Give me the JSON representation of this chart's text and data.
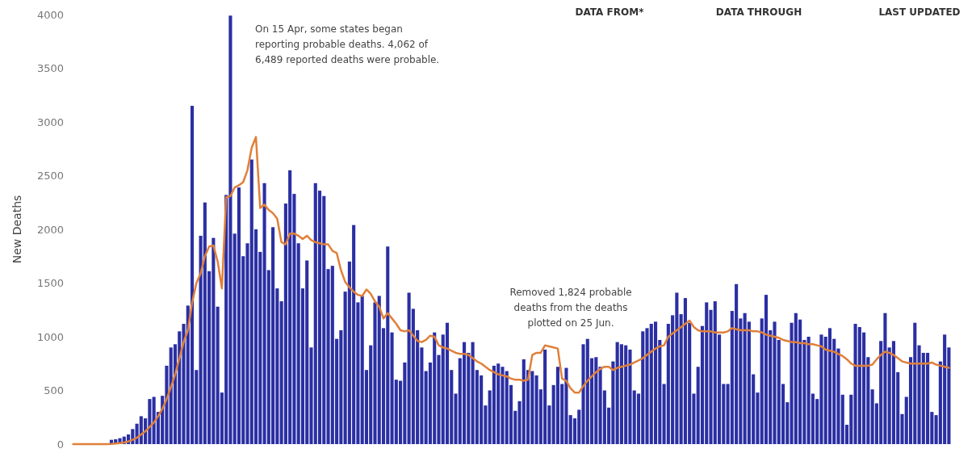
{
  "chart_data": {
    "type": "bar",
    "ylabel": "New Deaths",
    "categories": [
      null,
      null,
      null,
      null,
      null,
      null,
      null,
      null,
      null,
      null,
      null,
      null,
      null,
      null,
      null,
      null,
      null,
      null,
      null,
      null,
      null,
      null,
      null,
      null,
      null,
      null,
      null,
      null,
      null,
      null,
      null,
      null,
      null,
      null,
      null,
      null,
      null,
      null,
      null,
      null,
      null,
      null,
      null,
      null,
      null,
      null,
      null,
      null,
      null,
      null,
      null,
      null,
      null,
      null,
      null,
      null,
      null,
      null,
      null,
      null,
      null,
      null,
      null,
      null,
      null,
      null,
      null,
      null,
      null,
      null,
      null,
      null,
      null,
      null,
      null,
      null,
      null,
      null,
      null,
      null,
      null,
      null,
      null,
      null,
      null,
      null,
      null,
      null,
      null,
      null,
      null,
      null,
      null,
      null,
      null,
      null,
      null,
      null,
      null,
      null,
      null,
      null,
      null,
      null,
      null,
      null,
      null,
      null,
      null,
      null,
      null,
      null,
      null,
      null,
      null,
      null,
      null,
      null,
      null,
      null,
      null,
      null,
      null,
      null,
      null,
      null,
      null,
      null,
      null,
      null,
      null,
      null,
      null,
      null,
      null,
      null,
      null,
      null,
      null,
      null,
      null,
      null,
      null,
      null,
      null,
      null,
      null,
      null,
      null,
      null,
      null,
      null,
      null,
      null,
      null,
      null,
      null,
      null,
      null,
      null,
      null,
      null,
      null,
      null,
      null,
      null,
      null,
      null,
      null,
      null,
      null,
      null,
      null,
      null,
      null,
      null,
      null,
      null,
      null,
      null,
      null,
      null,
      null,
      null,
      null,
      null,
      null,
      null,
      null,
      null,
      null,
      null,
      null,
      null,
      null,
      null,
      null,
      null,
      null,
      null,
      null,
      null,
      null,
      null,
      null,
      null,
      null
    ],
    "series": [
      {
        "color": "#2b2fa3",
        "values": [
          0,
          0,
          0,
          0,
          0,
          0,
          0,
          0,
          0,
          40,
          45,
          55,
          70,
          90,
          140,
          190,
          260,
          240,
          420,
          440,
          300,
          450,
          730,
          900,
          930,
          1050,
          1120,
          1290,
          3150,
          690,
          1940,
          2250,
          1610,
          1920,
          1280,
          480,
          2320,
          3990,
          1960,
          2390,
          1750,
          1870,
          2650,
          2000,
          1790,
          2430,
          1620,
          2020,
          1450,
          1330,
          2240,
          2550,
          2330,
          1870,
          1450,
          1710,
          900,
          2430,
          2360,
          2310,
          1630,
          1660,
          980,
          1060,
          1420,
          1700,
          2040,
          1320,
          1380,
          690,
          920,
          1320,
          1380,
          1080,
          1840,
          1040,
          600,
          590,
          760,
          1410,
          1260,
          1060,
          900,
          680,
          760,
          1040,
          830,
          1020,
          1130,
          690,
          470,
          800,
          950,
          850,
          950,
          690,
          640,
          360,
          500,
          730,
          750,
          720,
          680,
          550,
          310,
          400,
          790,
          690,
          680,
          640,
          510,
          880,
          360,
          550,
          720,
          560,
          710,
          270,
          240,
          320,
          930,
          980,
          800,
          810,
          720,
          500,
          340,
          770,
          950,
          930,
          920,
          880,
          500,
          470,
          1050,
          1080,
          1120,
          1140,
          970,
          560,
          1120,
          1200,
          1410,
          1210,
          1360,
          1130,
          470,
          720,
          1100,
          1320,
          1250,
          1330,
          1020,
          560,
          560,
          1240,
          1490,
          1170,
          1220,
          1140,
          650,
          480,
          1170,
          1390,
          1060,
          1140,
          970,
          560,
          390,
          1130,
          1220,
          1160,
          970,
          1000,
          470,
          420,
          1020,
          1000,
          1080,
          980,
          890,
          460,
          180,
          460,
          1120,
          1090,
          1040,
          810,
          510,
          380,
          960,
          1220,
          900,
          960,
          670,
          280,
          440,
          810,
          1130,
          920,
          850,
          850,
          300,
          270,
          770,
          1020,
          900
        ]
      },
      {
        "type": "line",
        "color": "#e0803a",
        "values": [
          0,
          0,
          0,
          0,
          0,
          0,
          0,
          0,
          0,
          2,
          5,
          10,
          15,
          25,
          40,
          60,
          90,
          120,
          160,
          200,
          260,
          330,
          420,
          530,
          650,
          800,
          950,
          1060,
          1320,
          1500,
          1590,
          1750,
          1840,
          1850,
          1700,
          1450,
          2300,
          2310,
          2390,
          2410,
          2440,
          2550,
          2760,
          2860,
          2200,
          2230,
          2180,
          2150,
          2100,
          1880,
          1860,
          1960,
          1960,
          1940,
          1910,
          1940,
          1900,
          1880,
          1870,
          1860,
          1860,
          1800,
          1780,
          1620,
          1510,
          1460,
          1420,
          1390,
          1380,
          1440,
          1400,
          1330,
          1280,
          1170,
          1220,
          1170,
          1120,
          1060,
          1050,
          1060,
          1010,
          960,
          950,
          970,
          1010,
          1000,
          920,
          900,
          890,
          870,
          850,
          840,
          840,
          830,
          800,
          770,
          750,
          720,
          690,
          670,
          650,
          640,
          630,
          610,
          600,
          600,
          590,
          600,
          830,
          850,
          850,
          920,
          910,
          900,
          890,
          610,
          590,
          520,
          480,
          480,
          540,
          590,
          630,
          670,
          700,
          720,
          720,
          690,
          710,
          720,
          730,
          740,
          760,
          780,
          800,
          830,
          860,
          890,
          910,
          920,
          1000,
          1030,
          1060,
          1090,
          1120,
          1150,
          1090,
          1060,
          1050,
          1050,
          1050,
          1040,
          1040,
          1040,
          1050,
          1080,
          1070,
          1060,
          1060,
          1060,
          1050,
          1050,
          1040,
          1020,
          1010,
          1000,
          990,
          970,
          960,
          950,
          950,
          940,
          940,
          930,
          930,
          920,
          910,
          880,
          870,
          860,
          840,
          820,
          790,
          750,
          730,
          730,
          730,
          730,
          740,
          790,
          830,
          860,
          850,
          830,
          800,
          770,
          760,
          750,
          750,
          750,
          750,
          750,
          760,
          740,
          730,
          720,
          710
        ]
      }
    ],
    "ylim": [
      0,
      4000
    ],
    "yticks": [
      0,
      500,
      1000,
      1500,
      2000,
      2500,
      3000,
      3500,
      4000
    ],
    "tick_labels": "y",
    "annotations": [
      "On 15 Apr, some states began reporting probable deaths. 4,062 of 6,489 reported deaths were probable.",
      "Removed 1,824 probable deaths from the deaths plotted on 25 Jun.",
      "DATA FROM*",
      "DATA THROUGH",
      "LAST UPDATED"
    ]
  }
}
